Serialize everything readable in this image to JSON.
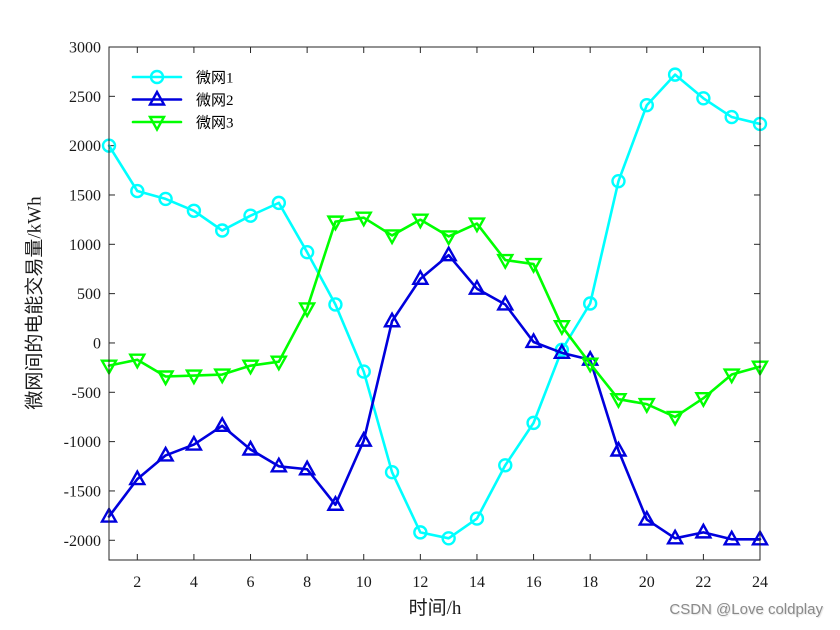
{
  "chart_data": {
    "type": "line",
    "x": [
      1,
      2,
      3,
      4,
      5,
      6,
      7,
      8,
      9,
      10,
      11,
      12,
      13,
      14,
      15,
      16,
      17,
      18,
      19,
      20,
      21,
      22,
      23,
      24
    ],
    "xlabel": "时间/h",
    "ylabel": "微网间的电能交易量/kWh",
    "xlim": [
      1,
      24
    ],
    "ylim": [
      -2200,
      3000
    ],
    "xticks": [
      2,
      4,
      6,
      8,
      10,
      12,
      14,
      16,
      18,
      20,
      22,
      24
    ],
    "yticks": [
      -2000,
      -1500,
      -1000,
      -500,
      0,
      500,
      1000,
      1500,
      2000,
      2500,
      3000
    ],
    "grid": false,
    "legend_position": "top-left",
    "series": [
      {
        "name": "微网1",
        "color": "#00ffff",
        "marker": "circle",
        "values": [
          2000,
          1540,
          1460,
          1340,
          1140,
          1290,
          1420,
          920,
          390,
          -290,
          -1310,
          -1920,
          -1980,
          -1780,
          -1240,
          -810,
          -70,
          400,
          1640,
          2410,
          2720,
          2480,
          2290,
          2220
        ]
      },
      {
        "name": "微网2",
        "color": "#0000dd",
        "marker": "triangle-up",
        "values": [
          -1760,
          -1380,
          -1140,
          -1030,
          -840,
          -1080,
          -1250,
          -1280,
          -1640,
          -990,
          220,
          650,
          890,
          550,
          390,
          10,
          -100,
          -170,
          -1090,
          -1790,
          -1980,
          -1920,
          -1990,
          -1990
        ]
      },
      {
        "name": "微网3",
        "color": "#00ff00",
        "marker": "triangle-down",
        "values": [
          -230,
          -170,
          -340,
          -330,
          -320,
          -230,
          -190,
          350,
          1230,
          1270,
          1090,
          1250,
          1080,
          1210,
          840,
          800,
          170,
          -210,
          -570,
          -620,
          -750,
          -560,
          -320,
          -240
        ]
      }
    ]
  },
  "watermark": "CSDN @Love coldplay"
}
